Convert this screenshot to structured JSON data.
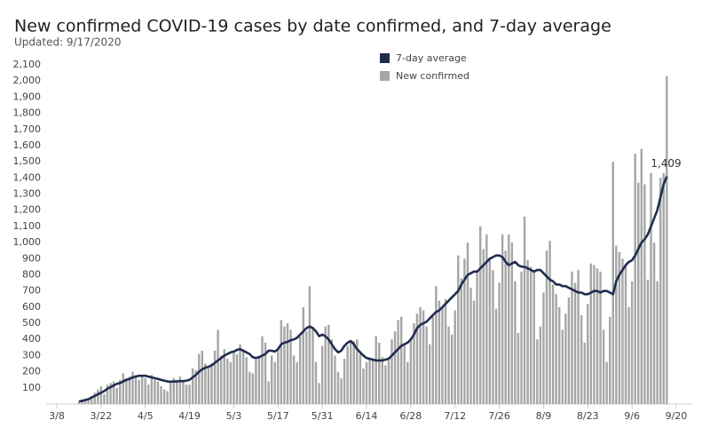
{
  "chart_data": {
    "type": "bar",
    "title": "New confirmed COVID-19 cases by date confirmed, and 7-day average",
    "subtitle": "Updated: 9/17/2020",
    "legend": "top",
    "grid": false,
    "ylim": [
      0,
      2100
    ],
    "yticks": [
      100,
      200,
      300,
      400,
      500,
      600,
      700,
      800,
      900,
      {
        "value": 1000,
        "label": "1,000"
      },
      {
        "value": 1100,
        "label": "1,100"
      },
      {
        "value": 1200,
        "label": "1,200"
      },
      {
        "value": 1300,
        "label": "1,300"
      },
      {
        "value": 1400,
        "label": "1,400"
      },
      {
        "value": 1500,
        "label": "1,500"
      },
      {
        "value": 1600,
        "label": "1,600"
      },
      {
        "value": 1700,
        "label": "1,700"
      },
      {
        "value": 1800,
        "label": "1,800"
      },
      {
        "value": 1900,
        "label": "1,900"
      },
      {
        "value": 2000,
        "label": "2,000"
      },
      {
        "value": 2100,
        "label": "2,100"
      }
    ],
    "categories": [
      "3/8",
      null,
      null,
      null,
      null,
      null,
      null,
      null,
      null,
      null,
      null,
      null,
      null,
      null,
      "3/22",
      null,
      null,
      null,
      null,
      null,
      null,
      null,
      null,
      null,
      null,
      null,
      null,
      null,
      "4/5",
      null,
      null,
      null,
      null,
      null,
      null,
      null,
      null,
      null,
      null,
      null,
      null,
      null,
      "4/19",
      null,
      null,
      null,
      null,
      null,
      null,
      null,
      null,
      null,
      null,
      null,
      null,
      null,
      "5/3",
      null,
      null,
      null,
      null,
      null,
      null,
      null,
      null,
      null,
      null,
      null,
      null,
      null,
      "5/17",
      null,
      null,
      null,
      null,
      null,
      null,
      null,
      null,
      null,
      null,
      null,
      null,
      null,
      "5/31",
      null,
      null,
      null,
      null,
      null,
      null,
      null,
      null,
      null,
      null,
      null,
      null,
      null,
      "6/14",
      null,
      null,
      null,
      null,
      null,
      null,
      null,
      null,
      null,
      null,
      null,
      null,
      null,
      "6/28",
      null,
      null,
      null,
      null,
      null,
      null,
      null,
      null,
      null,
      null,
      null,
      null,
      null,
      "7/12",
      null,
      null,
      null,
      null,
      null,
      null,
      null,
      null,
      null,
      null,
      null,
      null,
      null,
      "7/26",
      null,
      null,
      null,
      null,
      null,
      null,
      null,
      null,
      null,
      null,
      null,
      null,
      null,
      "8/9",
      null,
      null,
      null,
      null,
      null,
      null,
      null,
      null,
      null,
      null,
      null,
      null,
      null,
      "8/23",
      null,
      null,
      null,
      null,
      null,
      null,
      null,
      null,
      null,
      null,
      null,
      null,
      null,
      "9/6",
      null,
      null,
      null,
      null,
      null,
      null,
      null,
      null,
      null,
      null,
      null,
      null,
      null,
      "9/20"
    ],
    "series": [
      {
        "name": "7-day average",
        "type": "line",
        "color": "#1f2d4e",
        "values": [
          null,
          null,
          null,
          null,
          null,
          null,
          null,
          15,
          20,
          25,
          30,
          40,
          50,
          60,
          70,
          80,
          95,
          105,
          115,
          125,
          130,
          140,
          150,
          155,
          165,
          170,
          175,
          175,
          175,
          170,
          165,
          160,
          155,
          150,
          145,
          140,
          138,
          140,
          140,
          142,
          142,
          145,
          150,
          165,
          180,
          200,
          215,
          225,
          230,
          240,
          255,
          270,
          285,
          300,
          310,
          320,
          325,
          335,
          340,
          330,
          320,
          310,
          290,
          285,
          290,
          300,
          310,
          330,
          330,
          325,
          340,
          370,
          380,
          385,
          395,
          400,
          410,
          430,
          450,
          470,
          480,
          470,
          450,
          420,
          430,
          420,
          400,
          370,
          340,
          320,
          330,
          360,
          380,
          390,
          370,
          340,
          320,
          300,
          285,
          280,
          275,
          270,
          270,
          270,
          275,
          280,
          300,
          320,
          340,
          360,
          370,
          380,
          400,
          430,
          470,
          490,
          500,
          510,
          530,
          550,
          570,
          580,
          600,
          620,
          640,
          660,
          680,
          700,
          740,
          770,
          800,
          810,
          820,
          820,
          840,
          860,
          880,
          900,
          910,
          920,
          920,
          910,
          880,
          860,
          870,
          880,
          860,
          850,
          850,
          840,
          830,
          820,
          830,
          830,
          810,
          790,
          770,
          760,
          740,
          740,
          730,
          730,
          720,
          710,
          700,
          690,
          690,
          680,
          680,
          690,
          700,
          700,
          690,
          700,
          700,
          690,
          680,
          760,
          800,
          830,
          860,
          880,
          890,
          920,
          960,
          1000,
          1020,
          1050,
          1100,
          1150,
          1200,
          1280,
          1360,
          1409,
          null,
          null,
          null
        ],
        "value_labels": [
          null,
          null,
          null,
          null,
          null,
          null,
          null,
          null,
          null,
          null,
          null,
          null,
          null,
          null,
          null,
          null,
          null,
          null,
          null,
          null,
          null,
          null,
          null,
          null,
          null,
          null,
          null,
          null,
          null,
          null,
          null,
          null,
          null,
          null,
          null,
          null,
          null,
          null,
          null,
          null,
          null,
          null,
          null,
          null,
          null,
          null,
          null,
          null,
          null,
          null,
          null,
          null,
          null,
          null,
          null,
          null,
          null,
          null,
          null,
          null,
          null,
          null,
          null,
          null,
          null,
          null,
          null,
          null,
          null,
          null,
          null,
          null,
          null,
          null,
          null,
          null,
          null,
          null,
          null,
          null,
          null,
          null,
          null,
          null,
          null,
          null,
          null,
          null,
          null,
          null,
          null,
          null,
          null,
          null,
          null,
          null,
          null,
          null,
          null,
          null,
          null,
          null,
          null,
          null,
          null,
          null,
          null,
          null,
          null,
          null,
          null,
          null,
          null,
          null,
          null,
          null,
          null,
          null,
          null,
          null,
          null,
          null,
          null,
          null,
          null,
          null,
          null,
          null,
          null,
          null,
          null,
          null,
          null,
          null,
          null,
          null,
          null,
          null,
          null,
          null,
          null,
          null,
          null,
          null,
          null,
          null,
          null,
          null,
          null,
          null,
          null,
          null,
          null,
          null,
          null,
          null,
          null,
          null,
          null,
          null,
          null,
          null,
          null,
          null,
          null,
          null,
          null,
          null,
          null,
          null,
          null,
          null,
          null,
          null,
          null,
          null,
          null,
          null,
          null,
          null,
          null,
          null,
          null,
          null,
          null,
          null,
          null,
          null,
          null,
          null,
          null,
          null,
          null,
          "1,409",
          null,
          null,
          null
        ]
      },
      {
        "name": "New confirmed",
        "type": "bar",
        "color": "#a6a6a6",
        "values": [
          null,
          null,
          null,
          null,
          null,
          null,
          null,
          10,
          15,
          25,
          35,
          50,
          70,
          90,
          110,
          60,
          120,
          130,
          140,
          100,
          150,
          190,
          160,
          170,
          200,
          180,
          150,
          170,
          160,
          120,
          180,
          150,
          140,
          110,
          90,
          80,
          130,
          160,
          150,
          170,
          140,
          120,
          120,
          220,
          210,
          310,
          330,
          250,
          220,
          250,
          330,
          460,
          300,
          340,
          280,
          260,
          330,
          310,
          370,
          340,
          290,
          200,
          190,
          280,
          300,
          420,
          380,
          140,
          300,
          260,
          350,
          520,
          480,
          500,
          460,
          300,
          260,
          420,
          600,
          450,
          730,
          480,
          260,
          130,
          360,
          480,
          490,
          400,
          300,
          200,
          160,
          280,
          360,
          380,
          390,
          400,
          310,
          220,
          260,
          280,
          270,
          420,
          380,
          290,
          240,
          270,
          400,
          450,
          520,
          540,
          360,
          260,
          400,
          500,
          560,
          600,
          580,
          480,
          370,
          540,
          730,
          640,
          600,
          650,
          480,
          430,
          580,
          920,
          780,
          900,
          1000,
          720,
          640,
          820,
          1100,
          960,
          1050,
          900,
          830,
          590,
          750,
          1050,
          950,
          1050,
          1000,
          760,
          440,
          820,
          1160,
          890,
          850,
          830,
          400,
          480,
          690,
          950,
          1010,
          740,
          680,
          600,
          460,
          560,
          660,
          820,
          750,
          830,
          550,
          380,
          620,
          870,
          860,
          840,
          820,
          460,
          260,
          540,
          1500,
          980,
          940,
          900,
          860,
          600,
          760,
          1550,
          1370,
          1580,
          1360,
          770,
          1430,
          1000,
          760,
          1400,
          1430,
          2030,
          null,
          null,
          null
        ]
      }
    ]
  }
}
